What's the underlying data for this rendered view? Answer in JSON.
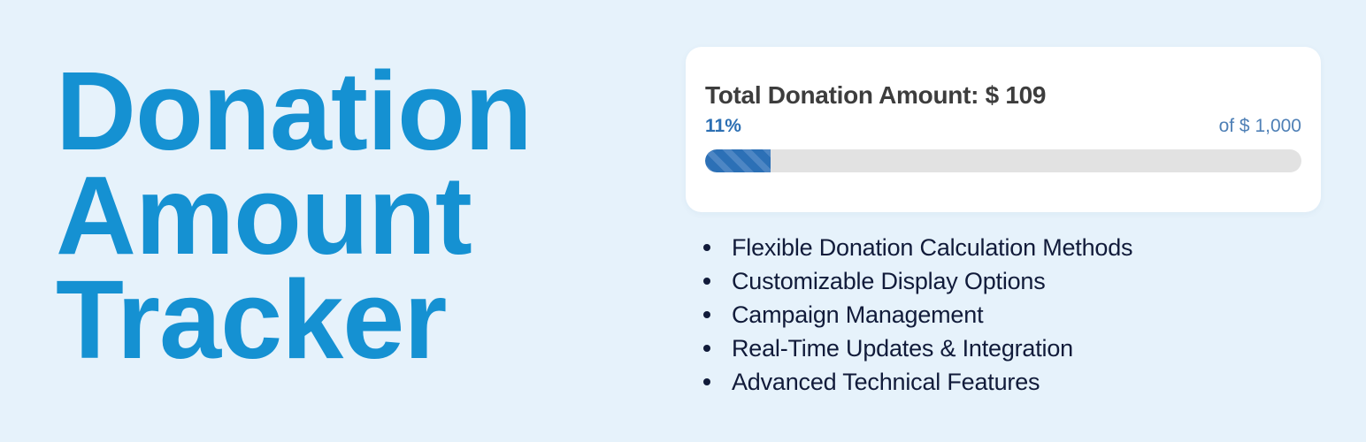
{
  "page": {
    "background_color": "#e6f2fb"
  },
  "hero": {
    "title_lines": [
      "Donation",
      "Amount",
      "Tracker"
    ],
    "title_color": "#1591d2"
  },
  "tracker_card": {
    "title": "Total Donation Amount: $ 109",
    "percent_label": "11%",
    "goal_label": "of $ 1,000",
    "progress_percent": 11,
    "colors": {
      "card_background": "#ffffff",
      "title_text": "#3d3d3d",
      "percent_text": "#2c6fb3",
      "goal_text": "#4f80b6",
      "track": "#e2e2e2",
      "fill_stripe_dark": "#2c70b6",
      "fill_stripe_light": "#4d86c4"
    }
  },
  "features": {
    "text_color": "#111b3a",
    "items": [
      "Flexible Donation Calculation Methods",
      "Customizable Display Options",
      "Campaign Management",
      "Real-Time Updates & Integration",
      "Advanced Technical Features"
    ]
  }
}
